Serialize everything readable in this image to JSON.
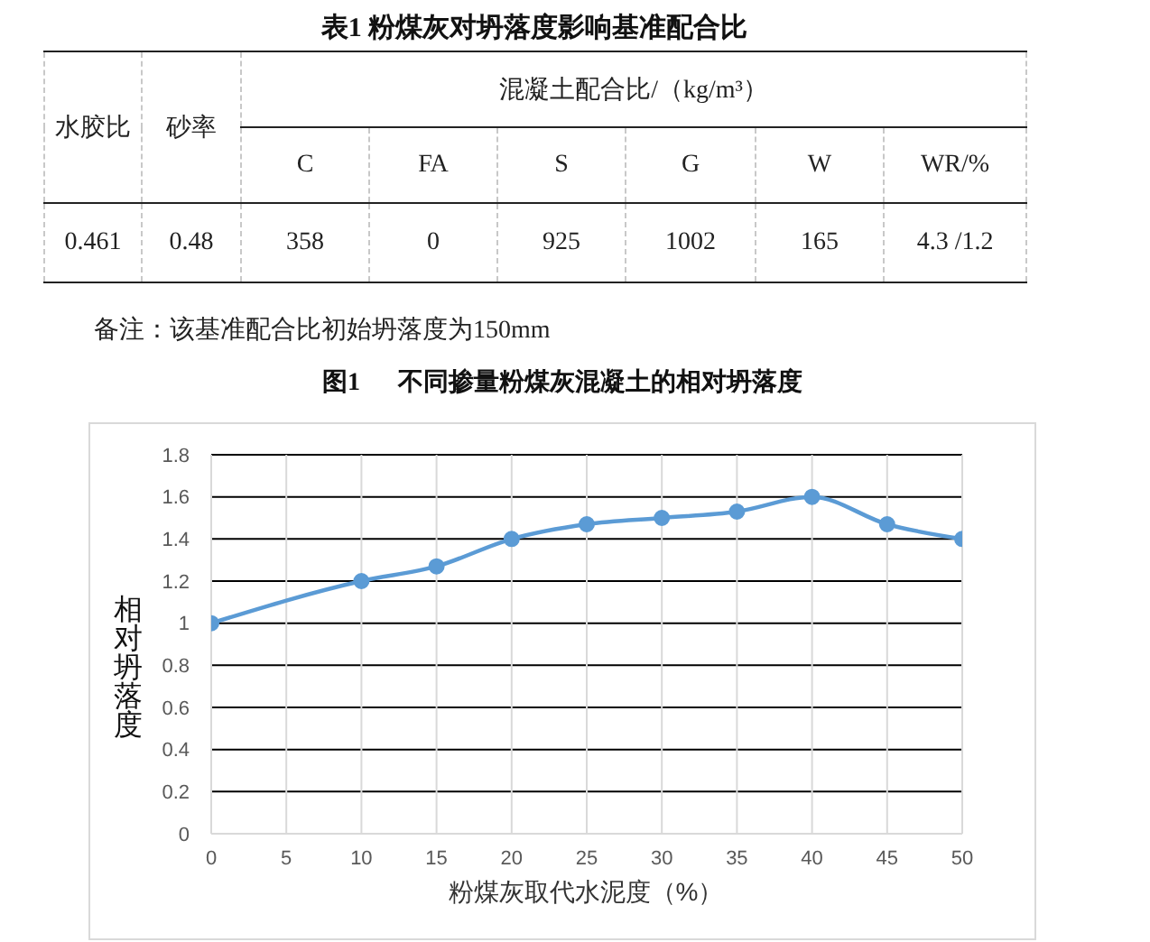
{
  "chart_data": [
    {
      "type": "other",
      "title": "表1 粉煤灰对坍落度影响基准配合比",
      "annotations": [
        "水胶比",
        "砂率",
        "混凝土配合比/（kg/m³）",
        "C",
        "FA",
        "S",
        "G",
        "W",
        "WR/%",
        "0.461",
        "0.48",
        "358",
        "0",
        "925",
        "1002",
        "165",
        "4.3 /1.2",
        "备注：该基准配合比初始坍落度为150mm"
      ]
    },
    {
      "type": "line",
      "title": "图1      不同掺量粉煤灰混凝土的相对坍落度",
      "xlabel": "粉煤灰取代水泥度（%）",
      "ylabel": "相对坍落度",
      "x": [
        0,
        10,
        15,
        20,
        25,
        30,
        35,
        40,
        45,
        50
      ],
      "values": [
        1.0,
        1.2,
        1.27,
        1.4,
        1.47,
        1.5,
        1.53,
        1.6,
        1.47,
        1.4
      ],
      "color": "#5b9bd5",
      "xlim": [
        0,
        50
      ],
      "xticks": [
        0,
        5,
        10,
        15,
        20,
        25,
        30,
        35,
        40,
        45,
        50
      ],
      "ylim": [
        0,
        1.8
      ],
      "yticks": [
        0,
        0.2,
        0.4,
        0.6,
        0.8,
        1,
        1.2,
        1.4,
        1.6,
        1.8
      ],
      "grid": true,
      "marker": "circle",
      "line_style": "solid"
    }
  ]
}
